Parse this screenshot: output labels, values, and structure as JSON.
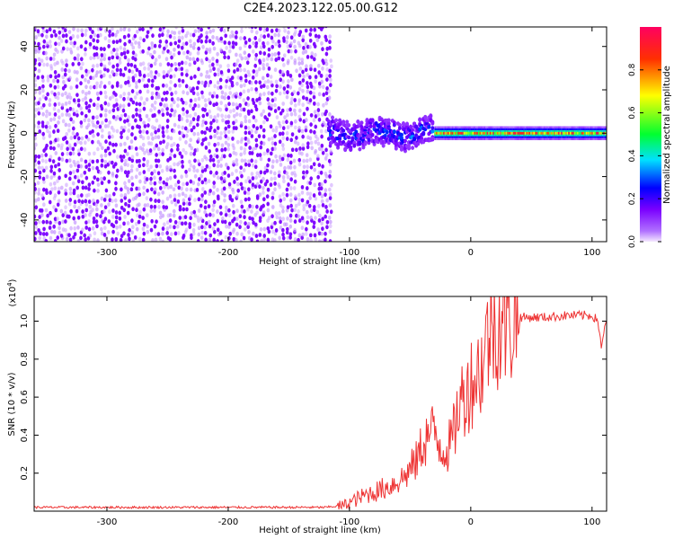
{
  "title": "C2E4.2023.122.05.00.G12",
  "chart_data": [
    {
      "type": "heatmap",
      "title": "C2E4.2023.122.05.00.G12",
      "xlabel": "Height of straight line (km)",
      "ylabel": "Frequency (Hz)",
      "xlim": [
        -360,
        112
      ],
      "ylim": [
        -50,
        49
      ],
      "x_ticks": [
        -300,
        -200,
        -100,
        0,
        100
      ],
      "x_tick_labels": [
        "-300",
        "-200",
        "-100",
        "0",
        "100"
      ],
      "y_ticks": [
        -40,
        -20,
        0,
        20,
        40
      ],
      "y_tick_labels": [
        "-40",
        "-20",
        "0",
        "20",
        "40"
      ],
      "colorbar": {
        "label": "Normalized spectral amplitude",
        "range": [
          0,
          1
        ],
        "ticks": [
          0.0,
          0.2,
          0.4,
          0.6,
          0.8
        ],
        "tick_labels": [
          "0.0",
          "0.2",
          "0.4",
          "0.6",
          "0.8"
        ],
        "colors": [
          "#f4e8ff",
          "#7a00ff",
          "#0000ff",
          "#00e0ff",
          "#00ff30",
          "#ffff00",
          "#ff3000",
          "#ff0060"
        ]
      },
      "regions": [
        {
          "x_range": [
            -360,
            -115
          ],
          "freq_range": [
            -50,
            49
          ],
          "amplitude": [
            0.05,
            0.15
          ],
          "pattern": "noise"
        },
        {
          "x_range": [
            -117,
            -30
          ],
          "freq_center": 0,
          "freq_halfwidth": 6,
          "amplitude": [
            0.1,
            0.35
          ],
          "pattern": "wandering"
        },
        {
          "x_range": [
            -30,
            112
          ],
          "freq_center": 0,
          "freq_halfwidth": 3,
          "amplitude": [
            0.2,
            0.95
          ],
          "pattern": "stable line"
        }
      ],
      "grid": false
    },
    {
      "type": "line",
      "xlabel": "Height of straight line (km)",
      "ylabel": "SNR (10 * v/v)",
      "y_multiplier": "(x10",
      "y_multiplier_exp": "4",
      "y_multiplier_close": ")",
      "xlim": [
        -360,
        112
      ],
      "ylim": [
        0,
        1.13
      ],
      "x_ticks": [
        -300,
        -200,
        -100,
        0,
        100
      ],
      "x_tick_labels": [
        "-300",
        "-200",
        "-100",
        "0",
        "100"
      ],
      "y_ticks": [
        0.2,
        0.4,
        0.6,
        0.8,
        1.0
      ],
      "y_tick_labels": [
        "0.2",
        "0.4",
        "0.6",
        "0.8",
        "1.0"
      ],
      "series": [
        {
          "color": "#ee3333",
          "x": [
            -360,
            -300,
            -200,
            -120,
            -105,
            -95,
            -85,
            -75,
            -65,
            -55,
            -45,
            -40,
            -35,
            -30,
            -25,
            -20,
            -15,
            -10,
            -5,
            0,
            5,
            10,
            15,
            20,
            30,
            40,
            60,
            80,
            100,
            105,
            108,
            110,
            112
          ],
          "y": [
            0.02,
            0.02,
            0.02,
            0.02,
            0.03,
            0.06,
            0.09,
            0.11,
            0.14,
            0.18,
            0.26,
            0.35,
            0.4,
            0.42,
            0.35,
            0.32,
            0.38,
            0.55,
            0.62,
            0.68,
            0.72,
            0.78,
            0.95,
            1.0,
            1.0,
            1.02,
            1.02,
            1.03,
            1.03,
            1.0,
            0.85,
            0.95,
            1.0
          ]
        }
      ],
      "grid": false
    }
  ]
}
